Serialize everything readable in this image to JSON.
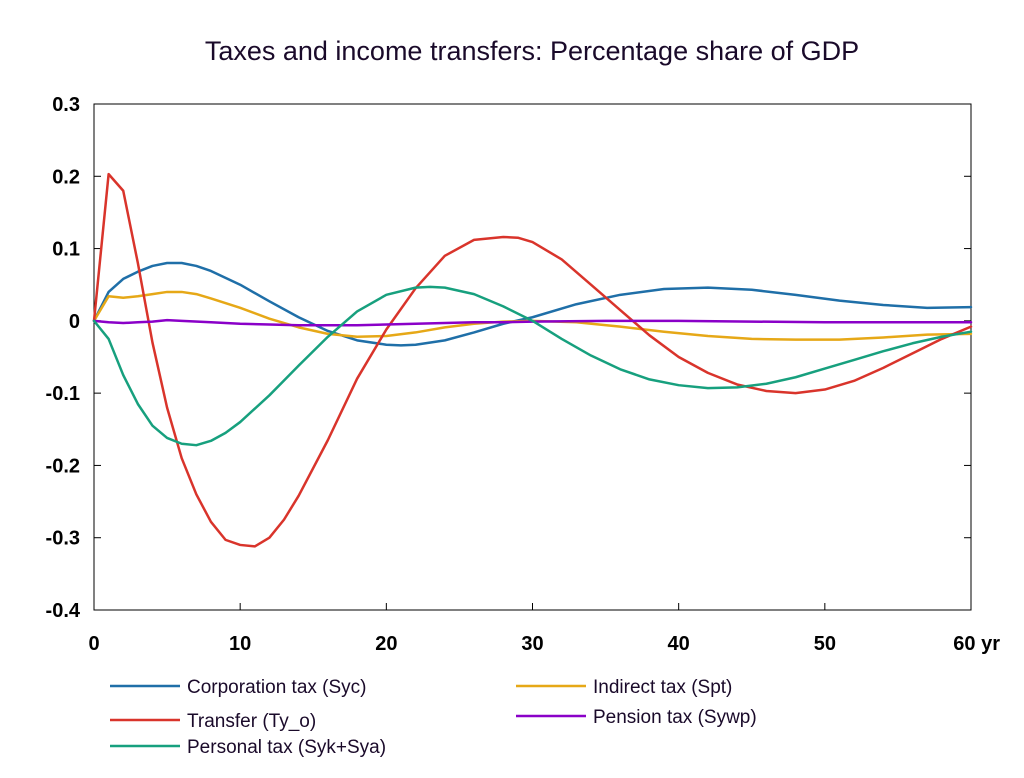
{
  "chart_data": {
    "type": "line",
    "title": "Taxes and income transfers: Percentage share of GDP",
    "x_unit_label": "yr",
    "xlim": [
      0,
      60
    ],
    "ylim": [
      -0.4,
      0.3
    ],
    "x_ticks": [
      0,
      10,
      20,
      30,
      40,
      50,
      60
    ],
    "x_tick_labels": [
      "0",
      "10",
      "20",
      "30",
      "40",
      "50",
      "60 yr"
    ],
    "y_ticks": [
      0.3,
      0.2,
      0.1,
      0,
      -0.1,
      -0.2,
      -0.3,
      -0.4
    ],
    "y_tick_labels": [
      "0.3",
      "0.2",
      "0.1",
      "0",
      "-0.1",
      "-0.2",
      "-0.3",
      "-0.4"
    ],
    "grid": false,
    "legend_position": "bottom",
    "series": [
      {
        "name": "Corporation tax (Syc)",
        "color": "#1f6fa8",
        "x": [
          0,
          1,
          2,
          3,
          4,
          5,
          6,
          7,
          8,
          10,
          12,
          14,
          16,
          18,
          20,
          21,
          22,
          24,
          26,
          28,
          30,
          33,
          36,
          39,
          42,
          45,
          48,
          51,
          54,
          57,
          60
        ],
        "y": [
          0,
          0.04,
          0.058,
          0.068,
          0.076,
          0.08,
          0.08,
          0.076,
          0.069,
          0.05,
          0.027,
          0.005,
          -0.014,
          -0.027,
          -0.033,
          -0.034,
          -0.033,
          -0.027,
          -0.016,
          -0.004,
          0.005,
          0.023,
          0.036,
          0.044,
          0.046,
          0.043,
          0.036,
          0.028,
          0.022,
          0.018,
          0.019
        ]
      },
      {
        "name": "Indirect tax (Spt)",
        "color": "#e6a817",
        "x": [
          0,
          1,
          2,
          3,
          4,
          5,
          6,
          7,
          8,
          10,
          12,
          14,
          16,
          18,
          20,
          22,
          24,
          26,
          28,
          30,
          33,
          36,
          39,
          42,
          45,
          48,
          51,
          54,
          57,
          60
        ],
        "y": [
          0,
          0.034,
          0.032,
          0.034,
          0.037,
          0.04,
          0.04,
          0.037,
          0.031,
          0.018,
          0.003,
          -0.009,
          -0.018,
          -0.022,
          -0.021,
          -0.016,
          -0.009,
          -0.004,
          -0.001,
          0.0,
          -0.002,
          -0.008,
          -0.015,
          -0.021,
          -0.025,
          -0.026,
          -0.026,
          -0.023,
          -0.019,
          -0.018
        ]
      },
      {
        "name": "Transfer (Ty_o)",
        "color": "#d9342b",
        "x": [
          0,
          1,
          2,
          3,
          4,
          5,
          6,
          7,
          8,
          9,
          10,
          11,
          12,
          13,
          14,
          16,
          18,
          20,
          22,
          24,
          26,
          28,
          29,
          30,
          32,
          34,
          36,
          38,
          40,
          42,
          44,
          46,
          48,
          50,
          52,
          54,
          56,
          58,
          60
        ],
        "y": [
          0,
          0.203,
          0.18,
          0.08,
          -0.03,
          -0.12,
          -0.19,
          -0.24,
          -0.278,
          -0.303,
          -0.31,
          -0.312,
          -0.3,
          -0.275,
          -0.242,
          -0.165,
          -0.08,
          -0.012,
          0.045,
          0.09,
          0.112,
          0.116,
          0.115,
          0.109,
          0.085,
          0.05,
          0.015,
          -0.02,
          -0.05,
          -0.072,
          -0.088,
          -0.097,
          -0.1,
          -0.095,
          -0.083,
          -0.065,
          -0.045,
          -0.025,
          -0.008
        ]
      },
      {
        "name": "Pension tax (Sywp)",
        "color": "#8a00c8",
        "x": [
          0,
          1,
          2,
          3,
          4,
          5,
          6,
          8,
          10,
          12,
          14,
          16,
          18,
          20,
          22,
          24,
          26,
          28,
          30,
          35,
          40,
          45,
          50,
          55,
          60
        ],
        "y": [
          0,
          -0.002,
          -0.003,
          -0.002,
          -0.001,
          0.001,
          0.0,
          -0.002,
          -0.004,
          -0.005,
          -0.006,
          -0.006,
          -0.006,
          -0.005,
          -0.004,
          -0.003,
          -0.002,
          -0.002,
          -0.001,
          0.0,
          0.0,
          -0.001,
          -0.002,
          -0.002,
          -0.002
        ]
      },
      {
        "name": "Personal tax (Syk+Sya)",
        "color": "#17a07e",
        "x": [
          0,
          1,
          2,
          3,
          4,
          5,
          6,
          7,
          8,
          9,
          10,
          12,
          14,
          16,
          18,
          20,
          22,
          23,
          24,
          26,
          28,
          30,
          32,
          34,
          36,
          38,
          40,
          42,
          44,
          46,
          48,
          50,
          52,
          54,
          56,
          58,
          60
        ],
        "y": [
          0,
          -0.025,
          -0.075,
          -0.115,
          -0.145,
          -0.162,
          -0.17,
          -0.172,
          -0.166,
          -0.155,
          -0.14,
          -0.103,
          -0.062,
          -0.022,
          0.013,
          0.036,
          0.046,
          0.047,
          0.046,
          0.037,
          0.02,
          0.0,
          -0.025,
          -0.048,
          -0.067,
          -0.081,
          -0.089,
          -0.093,
          -0.092,
          -0.087,
          -0.078,
          -0.066,
          -0.054,
          -0.042,
          -0.031,
          -0.022,
          -0.015
        ]
      }
    ],
    "legend": [
      {
        "name": "Corporation tax (Syc)",
        "color": "#1f6fa8"
      },
      {
        "name": "Indirect tax (Spt)",
        "color": "#e6a817"
      },
      {
        "name": "Transfer (Ty_o)",
        "color": "#d9342b"
      },
      {
        "name": "Pension tax (Sywp)",
        "color": "#8a00c8"
      },
      {
        "name": "Personal tax (Syk+Sya)",
        "color": "#17a07e"
      }
    ]
  }
}
